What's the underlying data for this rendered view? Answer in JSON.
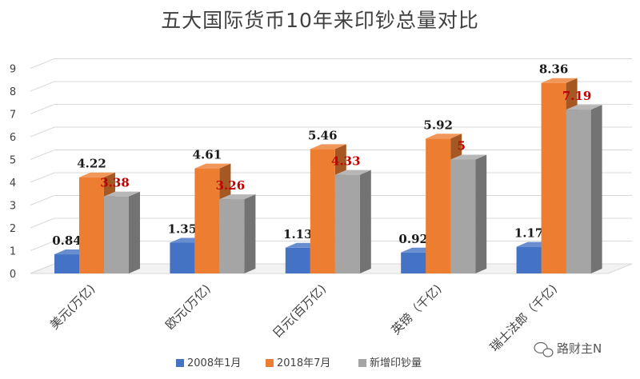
{
  "chart_data": {
    "type": "bar",
    "title": "五大国际货币10年来印钞总量对比",
    "categories": [
      "美元(万亿)",
      "欧元(万亿)",
      "日元(百万亿)",
      "英镑（千亿)",
      "瑞士法郎（千亿)"
    ],
    "series": [
      {
        "name": "2008年1月",
        "values": [
          0.84,
          1.35,
          1.13,
          0.92,
          1.17
        ],
        "color": "#4472C4",
        "label_color": "#1a1a1a"
      },
      {
        "name": "2018年7月",
        "values": [
          4.22,
          4.61,
          5.46,
          5.92,
          8.36
        ],
        "color": "#ED7D31",
        "label_color": "#1a1a1a"
      },
      {
        "name": "新增印钞量",
        "values": [
          3.38,
          3.26,
          4.33,
          5,
          7.19
        ],
        "color": "#A5A5A5",
        "label_color": "#C00000"
      }
    ],
    "data_labels": [
      [
        "0.84",
        "1.35",
        "1.13",
        "0.92",
        "1.17"
      ],
      [
        "4.22",
        "4.61",
        "5.46",
        "5.92",
        "8.36"
      ],
      [
        "3.38",
        "3.26",
        "4.33",
        "5",
        "7.19"
      ]
    ],
    "y_ticks": [
      "0",
      "1",
      "2",
      "3",
      "4",
      "5",
      "6",
      "7",
      "8",
      "9"
    ],
    "ylim": [
      0,
      9
    ],
    "grid": true,
    "style": "3d-column",
    "legend_position": "bottom"
  },
  "watermark": {
    "text": "路财主N",
    "icon": "wechat-icon"
  }
}
